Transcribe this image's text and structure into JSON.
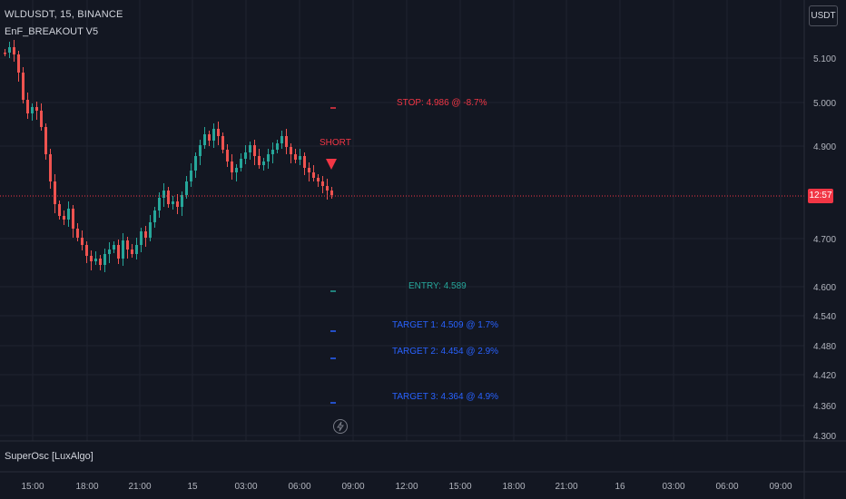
{
  "header": {
    "symbol_line": "WLDUSDT, 15, BINANCE",
    "indicator_name": "EnF_BREAKOUT V5",
    "currency_button": "USDT"
  },
  "oscillator": {
    "name": "SuperOsc [LuxAlgo]"
  },
  "colors": {
    "background": "#131722",
    "grid": "#1f2330",
    "axis_text": "#b2b5be",
    "up": "#26a69a",
    "down": "#ef5350",
    "stop": "#f23645",
    "entry": "#26a69a",
    "target": "#2962ff"
  },
  "price_axis": {
    "labels": [
      "5.100",
      "5.000",
      "4.900",
      "4.700",
      "4.600",
      "4.540",
      "4.480",
      "4.420",
      "4.360",
      "4.300"
    ],
    "current_price_badge": "12:57"
  },
  "time_axis": {
    "labels": [
      "15:00",
      "18:00",
      "21:00",
      "15",
      "03:00",
      "06:00",
      "09:00",
      "12:00",
      "15:00",
      "18:00",
      "21:00",
      "16",
      "03:00",
      "06:00",
      "09:00"
    ]
  },
  "signal": {
    "direction_label": "SHORT",
    "stop_label": "STOP: 4.986 @ -8.7%",
    "entry_label": "ENTRY: 4.589",
    "targets": [
      "TARGET 1: 4.509 @ 1.7%",
      "TARGET 2: 4.454 @ 2.9%",
      "TARGET 3: 4.364 @ 4.9%"
    ]
  },
  "icons": {
    "bolt": "bolt-icon",
    "short_marker": "triangle-down-icon"
  }
}
